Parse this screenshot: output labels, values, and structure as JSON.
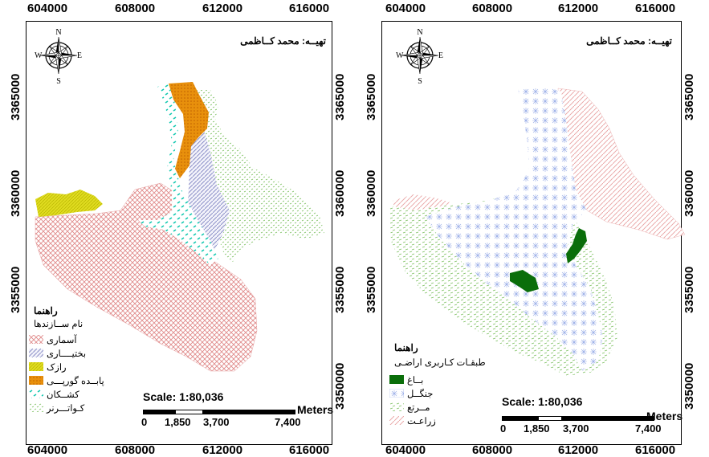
{
  "left_map": {
    "x_ticks": [
      "604000",
      "608000",
      "612000",
      "616000"
    ],
    "y_ticks": [
      "3365000",
      "3360000",
      "3355000",
      "3350000"
    ],
    "author": "تهیــه: محمد کــاظمی",
    "compass": {
      "n": "N",
      "s": "S",
      "e": "E",
      "w": "W"
    },
    "legend": {
      "title": "راهنما",
      "subtitle": "نام ســازندها",
      "items": [
        {
          "label": "آسماری",
          "pattern": "pink-crosshatch",
          "color": "#e8a0a0"
        },
        {
          "label": "بختیــــاری",
          "pattern": "blue-diagonal",
          "color": "#8b8fc7"
        },
        {
          "label": "رازک",
          "pattern": "yellow",
          "color": "#d4d000"
        },
        {
          "label": "پابــده گورپـــی",
          "pattern": "orange",
          "color": "#e08a10"
        },
        {
          "label": "کشــکان",
          "pattern": "cyan-dash",
          "color": "#00c8b4"
        },
        {
          "label": "کـواتـــرنر",
          "pattern": "green-dots",
          "color": "#7cc060"
        }
      ]
    },
    "scale": {
      "title": "Scale: 1:80,036",
      "unit": "Meters",
      "labels": [
        "0",
        "1,850",
        "3,700",
        "7,400"
      ]
    }
  },
  "right_map": {
    "x_ticks": [
      "604000",
      "608000",
      "612000",
      "616000"
    ],
    "y_ticks": [
      "3365000",
      "3360000",
      "3355000",
      "3350000"
    ],
    "author": "تهیــه: محمد کــاظمی",
    "compass": {
      "n": "N",
      "s": "S",
      "e": "E",
      "w": "W"
    },
    "legend": {
      "title": "راهنما",
      "subtitle": "طبقـات کـاربری اراضـی",
      "items": [
        {
          "label": "بــاغ",
          "pattern": "dark-green",
          "color": "#0a6e0a"
        },
        {
          "label": "جنگــل",
          "pattern": "blue-sparkle",
          "color": "#9aaee8"
        },
        {
          "label": "مــرتع",
          "pattern": "green-dash",
          "color": "#7cc060"
        },
        {
          "label": "زراعـت",
          "pattern": "pink-diagonal",
          "color": "#e8a0a0"
        }
      ]
    },
    "scale": {
      "title": "Scale: 1:80,036",
      "unit": "Meters",
      "labels": [
        "0",
        "1,850",
        "3,700",
        "7,400"
      ]
    }
  }
}
